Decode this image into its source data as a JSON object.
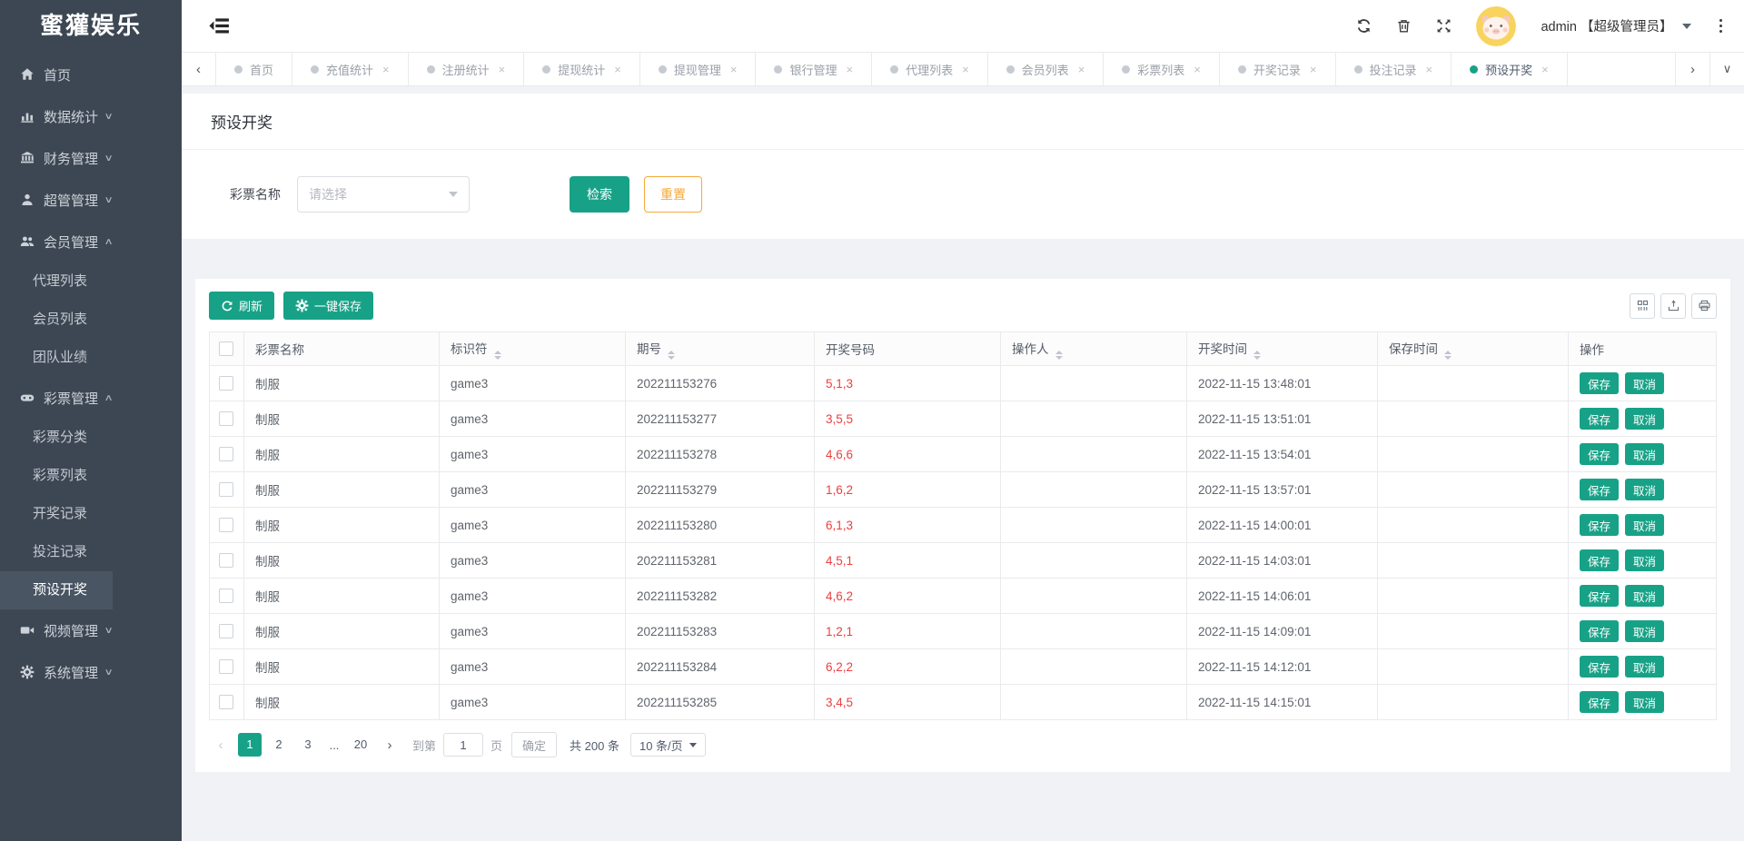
{
  "colors": {
    "primary": "#17A287",
    "warning": "#F5A93B",
    "danger": "#ED3F3F",
    "sidebar_bg": "#3D4754",
    "active_item_bg": "#4A5563"
  },
  "sidebar": {
    "logo": "蜜獾娱乐",
    "menu": [
      {
        "label": "首页",
        "icon": "home-icon"
      },
      {
        "label": "数据统计",
        "icon": "bar-chart-icon",
        "chevron": "down"
      },
      {
        "label": "财务管理",
        "icon": "bank-icon",
        "chevron": "down"
      },
      {
        "label": "超管管理",
        "icon": "admin-user-icon",
        "chevron": "down"
      },
      {
        "label": "会员管理",
        "icon": "members-icon",
        "chevron": "up",
        "children": [
          {
            "label": "代理列表"
          },
          {
            "label": "会员列表"
          },
          {
            "label": "团队业绩"
          }
        ]
      },
      {
        "label": "彩票管理",
        "icon": "lottery-icon",
        "chevron": "up",
        "children": [
          {
            "label": "彩票分类"
          },
          {
            "label": "彩票列表"
          },
          {
            "label": "开奖记录"
          },
          {
            "label": "投注记录"
          },
          {
            "label": "预设开奖",
            "active": true
          }
        ]
      },
      {
        "label": "视频管理",
        "icon": "video-icon",
        "chevron": "down"
      },
      {
        "label": "系统管理",
        "icon": "gear-icon",
        "chevron": "down"
      }
    ]
  },
  "topbar": {
    "user": "admin 【超级管理员】",
    "icons": [
      "refresh-icon",
      "trash-icon",
      "fullscreen-icon",
      "more-icon"
    ]
  },
  "tabs": [
    {
      "label": "首页",
      "closable": false
    },
    {
      "label": "充值统计",
      "closable": true
    },
    {
      "label": "注册统计",
      "closable": true
    },
    {
      "label": "提现统计",
      "closable": true
    },
    {
      "label": "提现管理",
      "closable": true
    },
    {
      "label": "银行管理",
      "closable": true
    },
    {
      "label": "代理列表",
      "closable": true
    },
    {
      "label": "会员列表",
      "closable": true
    },
    {
      "label": "彩票列表",
      "closable": true
    },
    {
      "label": "开奖记录",
      "closable": true
    },
    {
      "label": "投注记录",
      "closable": true
    },
    {
      "label": "预设开奖",
      "closable": true,
      "active": true
    }
  ],
  "page": {
    "title": "预设开奖"
  },
  "filter": {
    "label": "彩票名称",
    "select_placeholder": "请选择",
    "search_label": "检索",
    "reset_label": "重置"
  },
  "toolbar": {
    "refresh_label": "刷新",
    "save_all_label": "一键保存",
    "tools": [
      "columns-icon",
      "export-icon",
      "print-icon"
    ]
  },
  "table": {
    "columns": [
      {
        "label": "彩票名称",
        "sortable": false
      },
      {
        "label": "标识符",
        "sortable": true
      },
      {
        "label": "期号",
        "sortable": true
      },
      {
        "label": "开奖号码",
        "sortable": false
      },
      {
        "label": "操作人",
        "sortable": true
      },
      {
        "label": "开奖时间",
        "sortable": true
      },
      {
        "label": "保存时间",
        "sortable": true
      },
      {
        "label": "操作",
        "sortable": false
      }
    ],
    "action_labels": {
      "save": "保存",
      "cancel": "取消"
    },
    "rows": [
      {
        "lottery": "制服",
        "code": "game3",
        "issue": "202211153276",
        "numbers": "5,1,3",
        "operator": "",
        "draw_time": "2022-11-15 13:48:01",
        "save_time": ""
      },
      {
        "lottery": "制服",
        "code": "game3",
        "issue": "202211153277",
        "numbers": "3,5,5",
        "operator": "",
        "draw_time": "2022-11-15 13:51:01",
        "save_time": ""
      },
      {
        "lottery": "制服",
        "code": "game3",
        "issue": "202211153278",
        "numbers": "4,6,6",
        "operator": "",
        "draw_time": "2022-11-15 13:54:01",
        "save_time": ""
      },
      {
        "lottery": "制服",
        "code": "game3",
        "issue": "202211153279",
        "numbers": "1,6,2",
        "operator": "",
        "draw_time": "2022-11-15 13:57:01",
        "save_time": ""
      },
      {
        "lottery": "制服",
        "code": "game3",
        "issue": "202211153280",
        "numbers": "6,1,3",
        "operator": "",
        "draw_time": "2022-11-15 14:00:01",
        "save_time": ""
      },
      {
        "lottery": "制服",
        "code": "game3",
        "issue": "202211153281",
        "numbers": "4,5,1",
        "operator": "",
        "draw_time": "2022-11-15 14:03:01",
        "save_time": ""
      },
      {
        "lottery": "制服",
        "code": "game3",
        "issue": "202211153282",
        "numbers": "4,6,2",
        "operator": "",
        "draw_time": "2022-11-15 14:06:01",
        "save_time": ""
      },
      {
        "lottery": "制服",
        "code": "game3",
        "issue": "202211153283",
        "numbers": "1,2,1",
        "operator": "",
        "draw_time": "2022-11-15 14:09:01",
        "save_time": ""
      },
      {
        "lottery": "制服",
        "code": "game3",
        "issue": "202211153284",
        "numbers": "6,2,2",
        "operator": "",
        "draw_time": "2022-11-15 14:12:01",
        "save_time": ""
      },
      {
        "lottery": "制服",
        "code": "game3",
        "issue": "202211153285",
        "numbers": "3,4,5",
        "operator": "",
        "draw_time": "2022-11-15 14:15:01",
        "save_time": ""
      }
    ]
  },
  "pagination": {
    "pages": [
      "1",
      "2",
      "3",
      "...",
      "20"
    ],
    "current": "1",
    "goto_label": "到第",
    "goto_value": "1",
    "page_unit": "页",
    "confirm_label": "确定",
    "total_label": "共 200 条",
    "page_size_label": "10 条/页"
  }
}
